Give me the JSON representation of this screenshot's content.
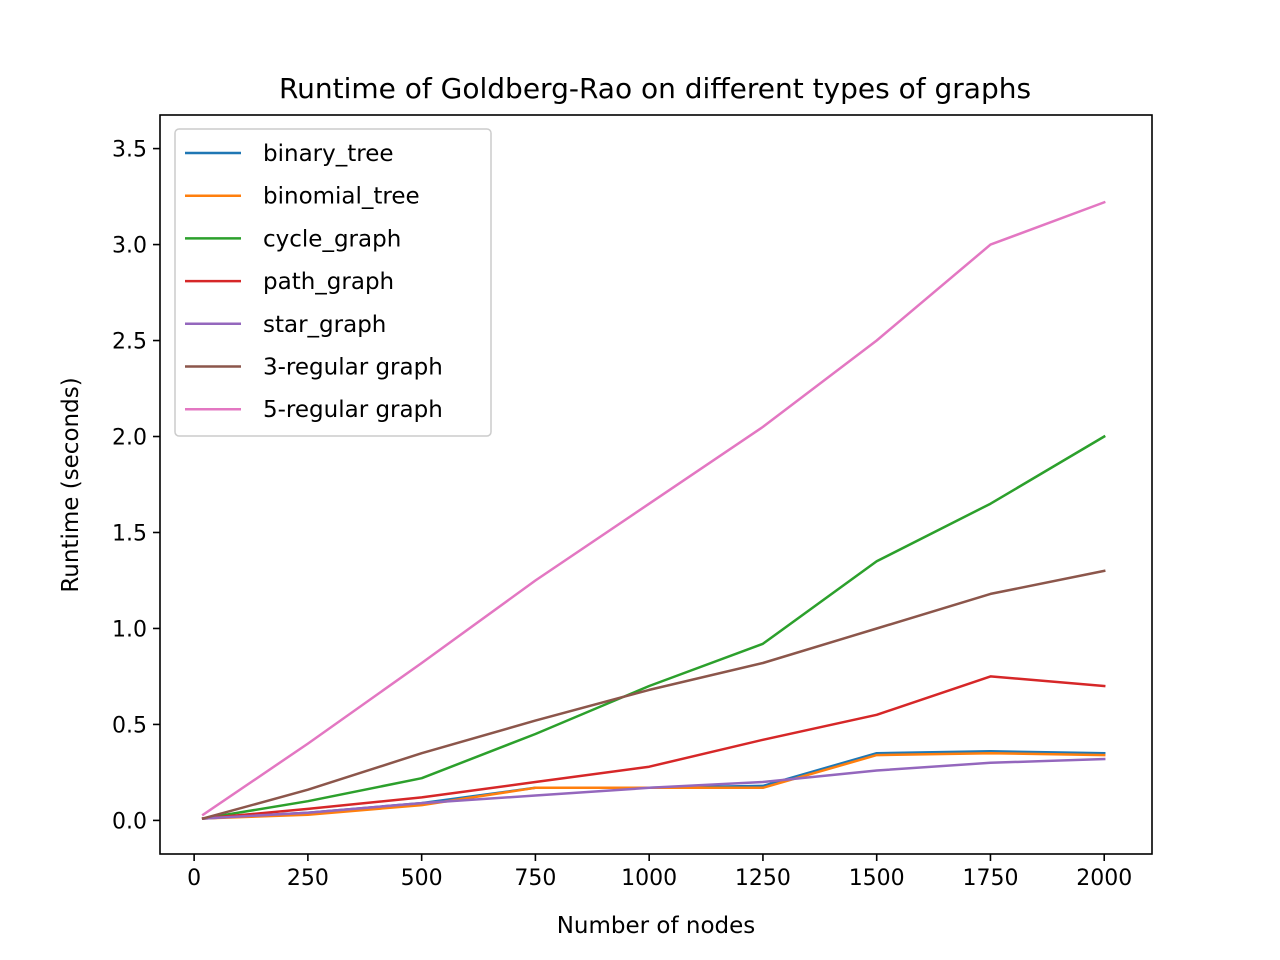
{
  "chart_data": {
    "type": "line",
    "title": "Runtime of Goldberg-Rao on different types of graphs",
    "xlabel": "Number of nodes",
    "ylabel": "Runtime (seconds)",
    "xlim": [
      -75,
      2105
    ],
    "ylim": [
      -0.175,
      3.675
    ],
    "xticks": [
      0,
      250,
      500,
      750,
      1000,
      1250,
      1500,
      1750,
      2000
    ],
    "yticks": [
      0.0,
      0.5,
      1.0,
      1.5,
      2.0,
      2.5,
      3.0,
      3.5
    ],
    "xtick_labels": [
      "0",
      "250",
      "500",
      "750",
      "1000",
      "1250",
      "1500",
      "1750",
      "2000"
    ],
    "ytick_labels": [
      "0.0",
      "0.5",
      "1.0",
      "1.5",
      "2.0",
      "2.5",
      "3.0",
      "3.5"
    ],
    "grid": false,
    "legend": "upper-left",
    "x": [
      20,
      250,
      500,
      750,
      1000,
      1250,
      1500,
      1750,
      2000
    ],
    "series": [
      {
        "name": "binary_tree",
        "color": "#1f77b4",
        "values": [
          0.01,
          0.04,
          0.09,
          0.17,
          0.17,
          0.18,
          0.35,
          0.36,
          0.35
        ]
      },
      {
        "name": "binomial_tree",
        "color": "#ff7f0e",
        "values": [
          0.01,
          0.03,
          0.08,
          0.17,
          0.17,
          0.17,
          0.34,
          0.35,
          0.34
        ]
      },
      {
        "name": "cycle_graph",
        "color": "#2ca02c",
        "values": [
          0.01,
          0.1,
          0.22,
          0.45,
          0.7,
          0.92,
          1.35,
          1.65,
          2.0
        ]
      },
      {
        "name": "path_graph",
        "color": "#d62728",
        "values": [
          0.01,
          0.06,
          0.12,
          0.2,
          0.28,
          0.42,
          0.55,
          0.75,
          0.7
        ]
      },
      {
        "name": "star_graph",
        "color": "#9467bd",
        "values": [
          0.01,
          0.04,
          0.09,
          0.13,
          0.17,
          0.2,
          0.26,
          0.3,
          0.32
        ]
      },
      {
        "name": "3-regular graph",
        "color": "#8c564b",
        "values": [
          0.01,
          0.16,
          0.35,
          0.52,
          0.68,
          0.82,
          1.0,
          1.18,
          1.3
        ]
      },
      {
        "name": "5-regular graph",
        "color": "#e377c2",
        "values": [
          0.03,
          0.4,
          0.82,
          1.25,
          1.65,
          2.05,
          2.5,
          3.0,
          3.22
        ]
      }
    ]
  }
}
